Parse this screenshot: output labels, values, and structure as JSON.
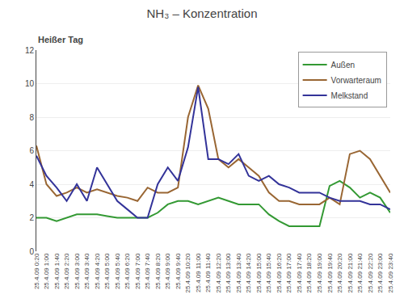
{
  "chart_data": {
    "type": "line",
    "title": "NH₃ – Konzentration",
    "subtitle": "Heißer Tag",
    "categories": [
      "25.4.09 0:20",
      "25.4.09 1:00",
      "25.4.09 1:40",
      "25.4.09 2:20",
      "25.4.09 3:00",
      "25.4.09 3:40",
      "25.4.09 4:20",
      "25.4.09 5:00",
      "25.4.09 5:40",
      "25.4.09 6:20",
      "25.4.09 7:00",
      "25.4.09 7:40",
      "25.4.09 8:20",
      "25.4.09 9:00",
      "25.4.09 9:40",
      "25.4.09 10:20",
      "25.4.09 11:00",
      "25.4.09 11:40",
      "25.4.09 12:20",
      "25.4.09 13:00",
      "25.4.09 13:40",
      "25.4.09 14:20",
      "25.4.09 15:00",
      "25.4.09 15:40",
      "25.4.09 16:20",
      "25.4.09 17:00",
      "25.4.09 17:40",
      "25.4.09 18:20",
      "25.4.09 19:00",
      "25.4.09 19:40",
      "25.4.09 20:20",
      "25.4.09 21:00",
      "25.4.09 21:40",
      "25.4.09 22:20",
      "25.4.09 23:00",
      "25.4.09 23:40"
    ],
    "series": [
      {
        "name": "Außen",
        "color": "#339933",
        "values": [
          2.0,
          2.0,
          1.8,
          2.0,
          2.2,
          2.2,
          2.2,
          2.1,
          2.0,
          2.0,
          2.0,
          2.0,
          2.3,
          2.8,
          3.0,
          3.0,
          2.8,
          3.0,
          3.2,
          3.0,
          2.8,
          2.8,
          2.8,
          2.2,
          1.8,
          1.5,
          1.5,
          1.5,
          1.5,
          3.9,
          4.2,
          3.8,
          3.2,
          3.5,
          3.2,
          2.3
        ]
      },
      {
        "name": "Vorwarteraum",
        "color": "#996633",
        "values": [
          6.3,
          4.0,
          3.3,
          3.5,
          3.8,
          3.5,
          3.7,
          3.5,
          3.3,
          3.2,
          3.0,
          3.8,
          3.5,
          3.5,
          3.8,
          8.0,
          9.9,
          8.5,
          5.5,
          5.0,
          5.5,
          5.0,
          4.5,
          3.5,
          3.0,
          3.0,
          2.8,
          2.8,
          2.8,
          3.2,
          2.8,
          5.8,
          6.0,
          5.5,
          4.5,
          3.5
        ]
      },
      {
        "name": "Melkstand",
        "color": "#333399",
        "values": [
          5.7,
          4.5,
          3.8,
          3.0,
          4.0,
          3.0,
          5.0,
          4.0,
          3.0,
          2.5,
          2.0,
          2.0,
          4.0,
          5.0,
          4.2,
          6.2,
          9.8,
          5.5,
          5.5,
          5.2,
          5.8,
          4.5,
          4.2,
          4.5,
          4.0,
          3.8,
          3.5,
          3.5,
          3.5,
          3.2,
          3.0,
          3.0,
          3.0,
          2.8,
          2.8,
          2.5
        ]
      }
    ],
    "ylim": [
      0,
      12
    ],
    "yticks": [
      0,
      2,
      4,
      6,
      8,
      10,
      12
    ],
    "grid": true,
    "legend": "upper right"
  }
}
